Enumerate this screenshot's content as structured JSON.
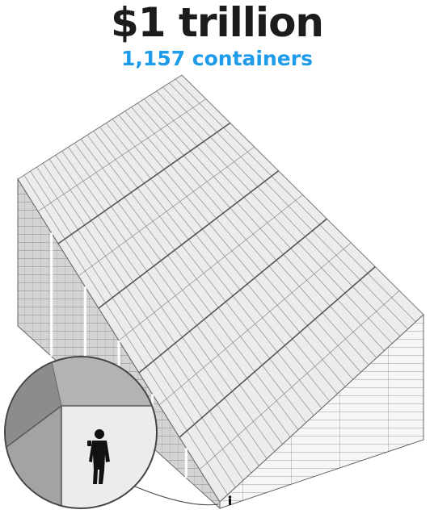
{
  "header": {
    "title": "$1 trillion",
    "subtitle": "1,157 containers"
  },
  "colors": {
    "accent": "#1e9be9",
    "title": "#1c1c1c",
    "container_top": "#ededed",
    "container_left": "#d0d0d0",
    "container_right": "#f7f7f7",
    "edge": "#7a7a7a"
  },
  "icons": [
    "person-silhouette-icon"
  ]
}
